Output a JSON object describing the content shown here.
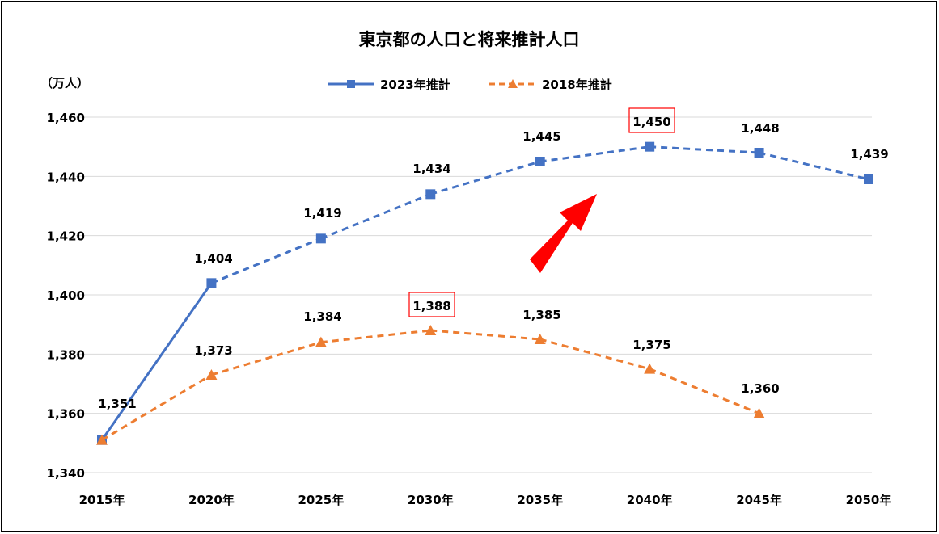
{
  "chart_data": {
    "type": "line",
    "title": "東京都の人口と将来推計人口",
    "unit_label": "（万人）",
    "categories": [
      "2015年",
      "2020年",
      "2025年",
      "2030年",
      "2035年",
      "2040年",
      "2045年",
      "2050年"
    ],
    "ylim": [
      1340,
      1460
    ],
    "yticks": [
      1340,
      1360,
      1380,
      1400,
      1420,
      1440,
      1460
    ],
    "ytick_labels": [
      "1,340",
      "1,360",
      "1,380",
      "1,400",
      "1,420",
      "1,440",
      "1,460"
    ],
    "grid": true,
    "legend_position": "top-center",
    "series": [
      {
        "name": "2023年推計",
        "color": "#4472C4",
        "marker": "square",
        "values": [
          1351,
          1404,
          1419,
          1434,
          1445,
          1450,
          1448,
          1439
        ],
        "labels": [
          "1,351",
          "1,404",
          "1,419",
          "1,434",
          "1,445",
          "1,450",
          "1,448",
          "1,439"
        ],
        "solid_through_index": 1,
        "highlight_index": 5
      },
      {
        "name": "2018年推計",
        "color": "#ED7D31",
        "marker": "triangle",
        "values": [
          1351,
          1373,
          1384,
          1388,
          1385,
          1375,
          1360,
          null
        ],
        "labels": [
          "",
          "1,373",
          "1,384",
          "1,388",
          "1,385",
          "1,375",
          "1,360",
          ""
        ],
        "solid_through_index": 0,
        "highlight_index": 3
      }
    ],
    "annotation": {
      "type": "arrow",
      "color": "#FF0000",
      "direction": "up-right"
    },
    "highlight_box_color": "#FF0000"
  }
}
